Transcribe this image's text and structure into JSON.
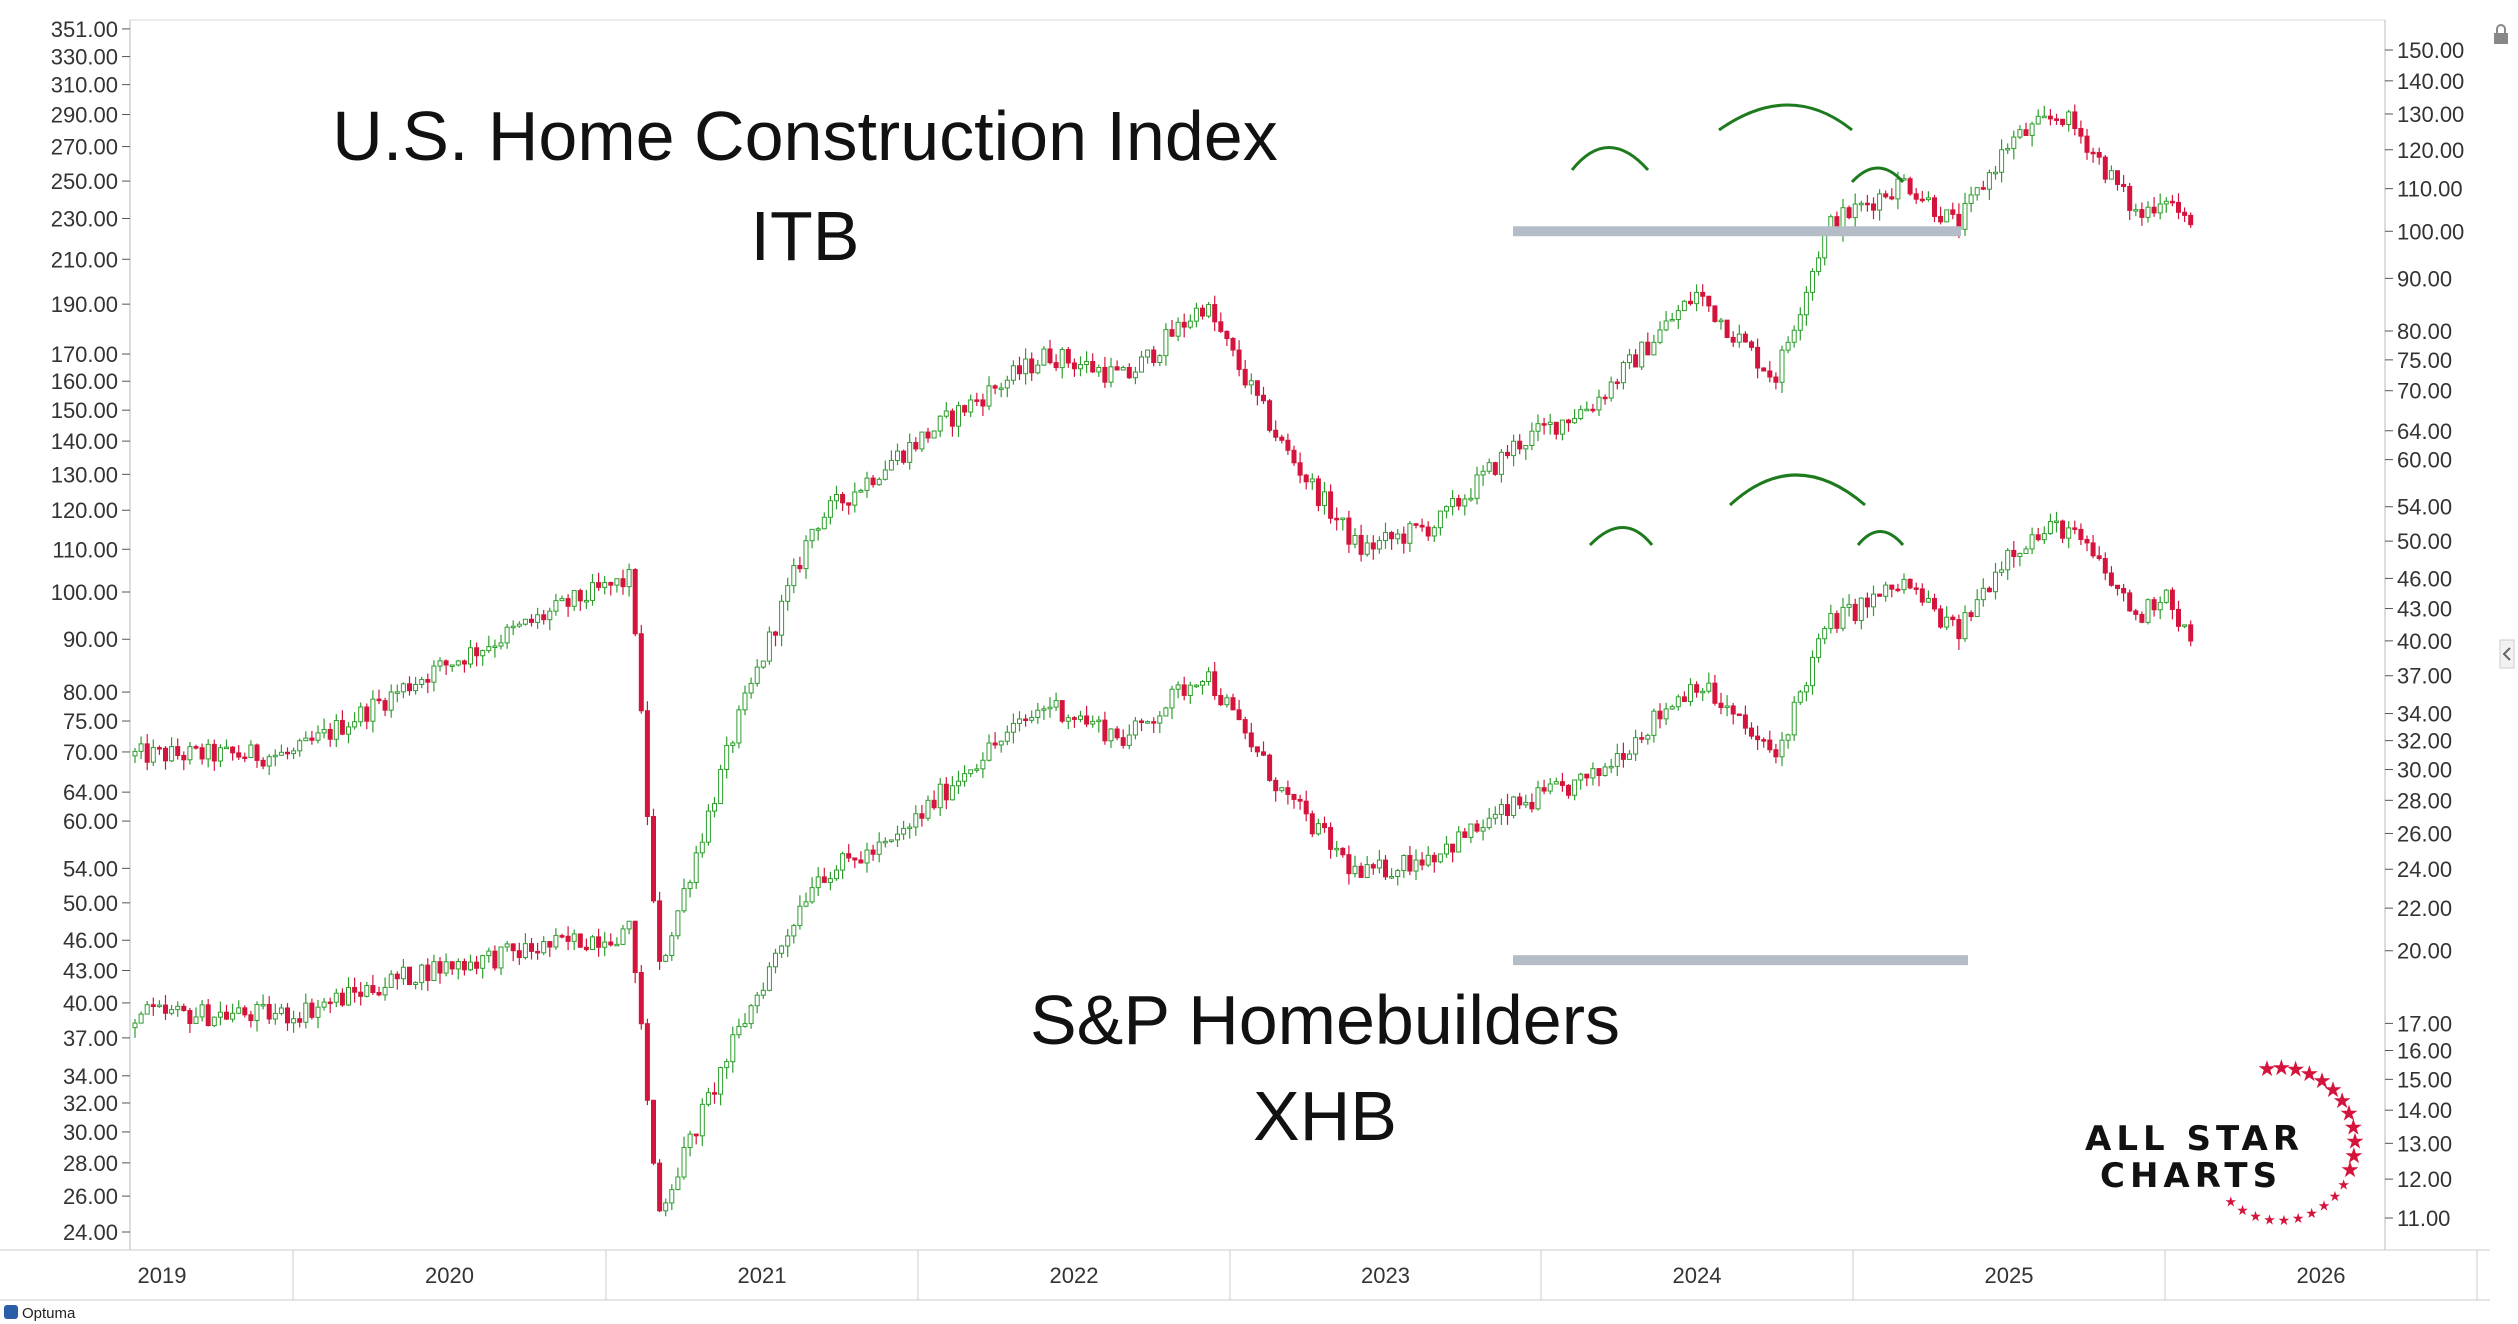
{
  "chart_data": {
    "type": "candlestick",
    "annotations": {
      "itb_title": "U.S. Home Construction Index",
      "itb_ticker": "ITB",
      "xhb_title": "S&P Homebuilders",
      "xhb_ticker": "XHB",
      "patterns": "head and shoulders tops on both ITB and XHB, with horizontal support lines near 100 (ITB) and 44 (XHB)"
    },
    "left_axis": {
      "series": "XHB",
      "scale": "log",
      "ticks": [
        "351.00",
        "330.00",
        "310.00",
        "290.00",
        "270.00",
        "250.00",
        "230.00",
        "210.00",
        "190.00",
        "170.00",
        "160.00",
        "150.00",
        "140.00",
        "130.00",
        "120.00",
        "110.00",
        "100.00",
        "90.00",
        "80.00",
        "75.00",
        "70.00",
        "64.00",
        "60.00",
        "54.00",
        "50.00",
        "46.00",
        "43.00",
        "40.00",
        "37.00",
        "34.00",
        "32.00",
        "30.00",
        "28.00",
        "26.00",
        "24.00"
      ]
    },
    "right_axis": {
      "series": "ITB",
      "scale": "log",
      "ticks": [
        "150.00",
        "140.00",
        "130.00",
        "120.00",
        "110.00",
        "100.00",
        "90.00",
        "80.00",
        "75.00",
        "70.00",
        "64.00",
        "60.00",
        "54.00",
        "50.00",
        "46.00",
        "43.00",
        "40.00",
        "37.00",
        "34.00",
        "32.00",
        "30.00",
        "28.00",
        "26.00",
        "24.00",
        "22.00",
        "20.00",
        "17.00",
        "16.00",
        "15.00",
        "14.00",
        "13.00",
        "12.00",
        "11.00"
      ]
    },
    "x_axis": {
      "ticks": [
        "2019",
        "2020",
        "2021",
        "2022",
        "2023",
        "2024",
        "2025",
        "2026"
      ]
    },
    "series": [
      {
        "name": "ITB",
        "support_level": 100,
        "x": [
          "2019-01",
          "2019-06",
          "2019-12",
          "2020-02",
          "2020-03",
          "2020-06",
          "2020-09",
          "2020-12",
          "2021-03",
          "2021-06",
          "2021-09",
          "2021-12",
          "2022-03",
          "2022-06",
          "2022-09",
          "2022-12",
          "2023-03",
          "2023-06",
          "2023-07",
          "2023-10",
          "2023-12",
          "2024-03",
          "2024-05",
          "2024-07",
          "2024-09",
          "2024-10",
          "2024-12",
          "2025-01",
          "2025-02"
        ],
        "values": [
          31,
          37,
          44,
          46,
          19,
          33,
          52,
          60,
          68,
          76,
          72,
          85,
          62,
          49,
          52,
          62,
          68,
          82,
          87,
          72,
          101,
          112,
          101,
          122,
          130,
          122,
          103,
          109,
          100
        ]
      },
      {
        "name": "XHB",
        "support_level": 44,
        "x": [
          "2019-01",
          "2019-06",
          "2019-12",
          "2020-02",
          "2020-03",
          "2020-06",
          "2020-09",
          "2020-12",
          "2021-03",
          "2021-06",
          "2021-09",
          "2021-12",
          "2022-03",
          "2022-06",
          "2022-09",
          "2022-12",
          "2023-03",
          "2023-06",
          "2023-07",
          "2023-10",
          "2023-12",
          "2024-03",
          "2024-05",
          "2024-07",
          "2024-09",
          "2024-10",
          "2024-12",
          "2025-01",
          "2025-02"
        ],
        "values": [
          39,
          43,
          46,
          47,
          25,
          37,
          53,
          57,
          68,
          78,
          72,
          84,
          64,
          53,
          56,
          62,
          66,
          78,
          82,
          69,
          93,
          102,
          91,
          110,
          116,
          110,
          94,
          101,
          89
        ]
      }
    ],
    "colors": {
      "up": "#2e9e2e",
      "down": "#d4143c",
      "support": "#b4bcc7",
      "arc": "#1e7a1e"
    }
  },
  "branding": {
    "logo_line1": "ALL STAR",
    "logo_line2": "CHARTS",
    "footer": "Optuma"
  }
}
